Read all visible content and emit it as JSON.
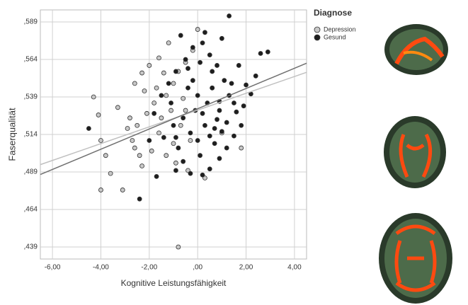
{
  "chart_data": {
    "type": "scatter",
    "xlabel": "Kognitive Leistungsfähigkeit",
    "ylabel": "Faserqualität",
    "legend_title": "Diagnose",
    "xlim": [
      -6.5,
      4.5
    ],
    "ylim": [
      0.431,
      0.597
    ],
    "xticks": [
      {
        "value": -6,
        "label": "-6,00"
      },
      {
        "value": -4,
        "label": "-4,00"
      },
      {
        "value": -2,
        "label": "-2,00"
      },
      {
        "value": 0,
        "label": ",00"
      },
      {
        "value": 2,
        "label": "2,00"
      },
      {
        "value": 4,
        "label": "4,00"
      }
    ],
    "yticks": [
      {
        "value": 0.439,
        "label": ",439"
      },
      {
        "value": 0.464,
        "label": ",464"
      },
      {
        "value": 0.489,
        "label": ",489"
      },
      {
        "value": 0.514,
        "label": ",514"
      },
      {
        "value": 0.539,
        "label": ",539"
      },
      {
        "value": 0.564,
        "label": ",564"
      },
      {
        "value": 0.589,
        "label": ",589"
      }
    ],
    "grid": true,
    "legend": "outside-right",
    "series": [
      {
        "name": "Depression",
        "color": "#c8c8c8",
        "line_color": "#c0c0c0",
        "x": [
          -4.3,
          -4.1,
          -4.0,
          -3.8,
          -4.0,
          -3.6,
          -3.1,
          -0.8,
          0.0,
          -1.2,
          -2.3,
          -2.6,
          -2.2,
          -3.3,
          -2.8,
          -2.5,
          -2.7,
          -2.4,
          -2.3,
          -1.9,
          -1.6,
          -1.5,
          -1.8,
          -1.3,
          -1.0,
          -0.8,
          -0.5,
          -1.6,
          -2.0,
          -1.1,
          -0.7,
          -0.3,
          -1.3,
          -0.9,
          -0.4,
          0.3,
          -2.9,
          -1.7,
          -0.6,
          -2.1,
          1.0,
          0.6,
          -1.4,
          -0.2,
          1.8,
          -2.6,
          -0.5,
          -1.0
        ],
        "values": [
          0.539,
          0.527,
          0.51,
          0.5,
          0.477,
          0.488,
          0.477,
          0.439,
          0.584,
          0.575,
          0.555,
          0.548,
          0.543,
          0.532,
          0.525,
          0.52,
          0.51,
          0.5,
          0.493,
          0.503,
          0.515,
          0.525,
          0.535,
          0.54,
          0.548,
          0.556,
          0.562,
          0.565,
          0.56,
          0.53,
          0.52,
          0.51,
          0.5,
          0.495,
          0.49,
          0.485,
          0.518,
          0.545,
          0.538,
          0.528,
          0.515,
          0.545,
          0.555,
          0.57,
          0.505,
          0.505,
          0.53,
          0.508
        ],
        "fit_x": [
          -6.5,
          4.5
        ],
        "fit_values": [
          0.4939,
          0.5554
        ]
      },
      {
        "name": "Gesund",
        "color": "#1e1e1e",
        "line_color": "#707070",
        "x": [
          -4.5,
          -2.4,
          1.3,
          2.6,
          2.9,
          2.4,
          2.0,
          1.9,
          1.6,
          1.8,
          1.5,
          1.2,
          0.9,
          0.5,
          0.2,
          -0.3,
          -0.9,
          -1.7,
          -0.6,
          0.1,
          0.7,
          1.0,
          1.3,
          1.1,
          0.8,
          0.5,
          0.2,
          -0.2,
          -0.5,
          -0.9,
          -1.2,
          -1.5,
          -0.4,
          0.0,
          0.4,
          0.9,
          1.4,
          0.6,
          -0.1,
          -0.6,
          -1.0,
          -1.4,
          -0.3,
          0.3,
          0.8,
          0.0,
          -0.8,
          0.5,
          1.7,
          2.2,
          -1.8,
          -2.0,
          1.0,
          0.3,
          -0.7,
          0.9,
          -0.2,
          0.6,
          1.5,
          0.2,
          -1.1,
          -0.4,
          1.2,
          0.7,
          -0.9,
          0.1
        ],
        "values": [
          0.518,
          0.471,
          0.593,
          0.568,
          0.569,
          0.553,
          0.547,
          0.533,
          0.529,
          0.52,
          0.513,
          0.505,
          0.498,
          0.491,
          0.487,
          0.488,
          0.49,
          0.486,
          0.496,
          0.5,
          0.508,
          0.516,
          0.54,
          0.55,
          0.56,
          0.567,
          0.575,
          0.572,
          0.564,
          0.556,
          0.548,
          0.54,
          0.545,
          0.54,
          0.535,
          0.53,
          0.548,
          0.545,
          0.53,
          0.525,
          0.52,
          0.512,
          0.515,
          0.52,
          0.524,
          0.51,
          0.505,
          0.513,
          0.56,
          0.541,
          0.528,
          0.51,
          0.578,
          0.582,
          0.58,
          0.536,
          0.55,
          0.556,
          0.535,
          0.528,
          0.535,
          0.558,
          0.522,
          0.518,
          0.512,
          0.562
        ],
        "fit_x": [
          -6.5,
          4.5
        ],
        "fit_values": [
          0.4873,
          0.5615
        ]
      }
    ]
  }
}
